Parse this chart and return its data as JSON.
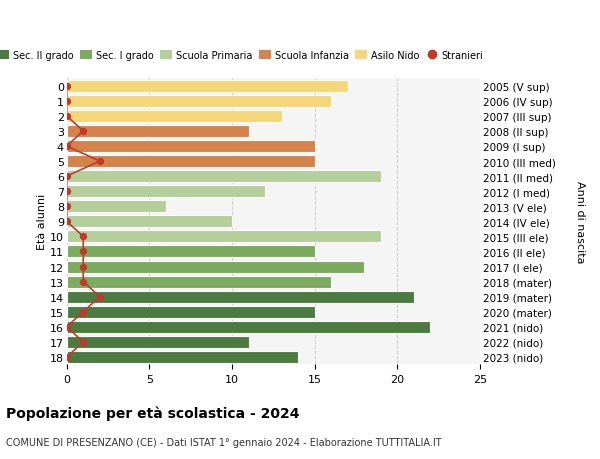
{
  "ages": [
    18,
    17,
    16,
    15,
    14,
    13,
    12,
    11,
    10,
    9,
    8,
    7,
    6,
    5,
    4,
    3,
    2,
    1,
    0
  ],
  "years": [
    "2005 (V sup)",
    "2006 (IV sup)",
    "2007 (III sup)",
    "2008 (II sup)",
    "2009 (I sup)",
    "2010 (III med)",
    "2011 (II med)",
    "2012 (I med)",
    "2013 (V ele)",
    "2014 (IV ele)",
    "2015 (III ele)",
    "2016 (II ele)",
    "2017 (I ele)",
    "2018 (mater)",
    "2019 (mater)",
    "2020 (mater)",
    "2021 (nido)",
    "2022 (nido)",
    "2023 (nido)"
  ],
  "values": [
    14,
    11,
    22,
    15,
    21,
    16,
    18,
    15,
    19,
    10,
    6,
    12,
    19,
    15,
    15,
    11,
    13,
    16,
    17
  ],
  "stranieri_x": [
    0,
    1,
    0,
    1,
    2,
    1,
    1,
    1,
    1,
    0,
    0,
    0,
    0,
    2,
    0,
    1,
    0,
    0,
    0
  ],
  "bar_colors": [
    "#4a7c3f",
    "#4a7c3f",
    "#4a7c3f",
    "#4a7c3f",
    "#4a7c3f",
    "#7aab5e",
    "#7aab5e",
    "#7aab5e",
    "#b5cf9b",
    "#b5cf9b",
    "#b5cf9b",
    "#b5cf9b",
    "#b5cf9b",
    "#d4834a",
    "#d4834a",
    "#d4834a",
    "#f5d77a",
    "#f5d77a",
    "#f5d77a"
  ],
  "legend_labels": [
    "Sec. II grado",
    "Sec. I grado",
    "Scuola Primaria",
    "Scuola Infanzia",
    "Asilo Nido",
    "Stranieri"
  ],
  "legend_colors": [
    "#4a7c3f",
    "#7aab5e",
    "#b5cf9b",
    "#d4834a",
    "#f5d77a",
    "#c0392b"
  ],
  "ylabel": "Età alunni",
  "ylabel_right": "Anni di nascita",
  "title": "Popolazione per età scolastica - 2024",
  "subtitle": "COMUNE DI PRESENZANO (CE) - Dati ISTAT 1° gennaio 2024 - Elaborazione TUTTITALIA.IT",
  "xlim": [
    0,
    25
  ],
  "grid_color": "#cccccc",
  "bg_color": "#f5f5f5",
  "line_color": "#c0392b"
}
